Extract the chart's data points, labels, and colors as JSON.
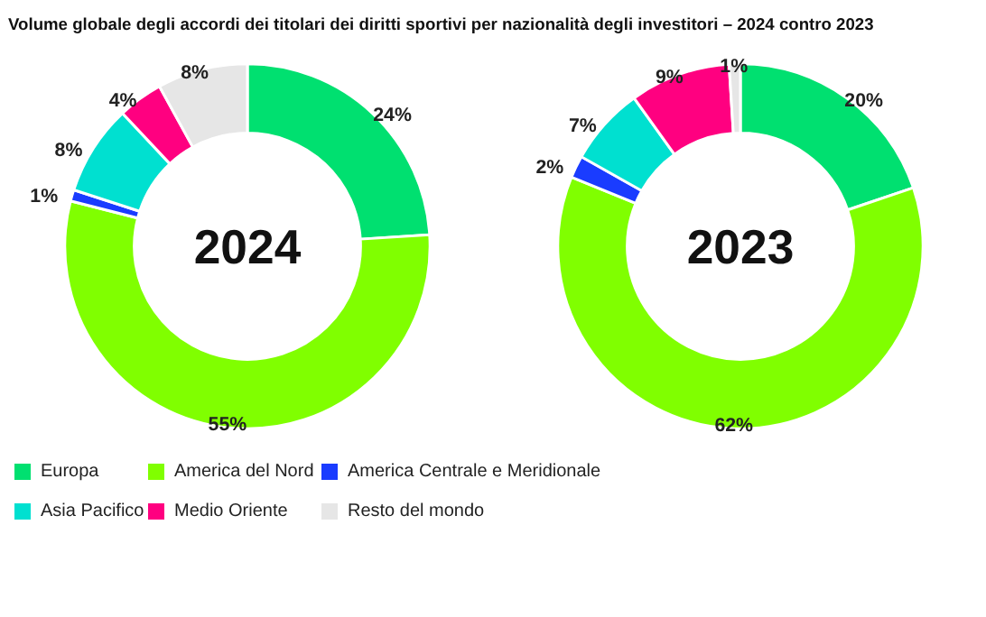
{
  "chart_data": [
    {
      "type": "donut",
      "title": "Volume globale degli accordi dei titolari dei diritti sportivi per nazionalità degli investitori – 2024 contro 2023",
      "annotations": [
        "2024"
      ],
      "categories": [
        "Europa",
        "America del Nord",
        "America Centrale e Meridionale",
        "Asia Pacifico",
        "Medio Oriente",
        "Resto del mondo"
      ],
      "values": [
        24,
        55,
        1,
        8,
        4,
        8
      ],
      "value_labels": [
        "24%",
        "55%",
        "1%",
        "8%",
        "4%",
        "8%"
      ],
      "colors": [
        "#00e070",
        "#80ff00",
        "#1a3cff",
        "#00e0d0",
        "#ff0080",
        "#e6e6e6"
      ],
      "legend": "bottom"
    },
    {
      "type": "donut",
      "annotations": [
        "2023"
      ],
      "values": [
        20,
        62,
        2,
        7,
        9,
        1
      ],
      "value_labels": [
        "20%",
        "62%",
        "2%",
        "7%",
        "9%",
        "1%"
      ],
      "colors": [
        "#00e070",
        "#80ff00",
        "#1a3cff",
        "#00e0d0",
        "#ff0080",
        "#e6e6e6"
      ]
    }
  ]
}
